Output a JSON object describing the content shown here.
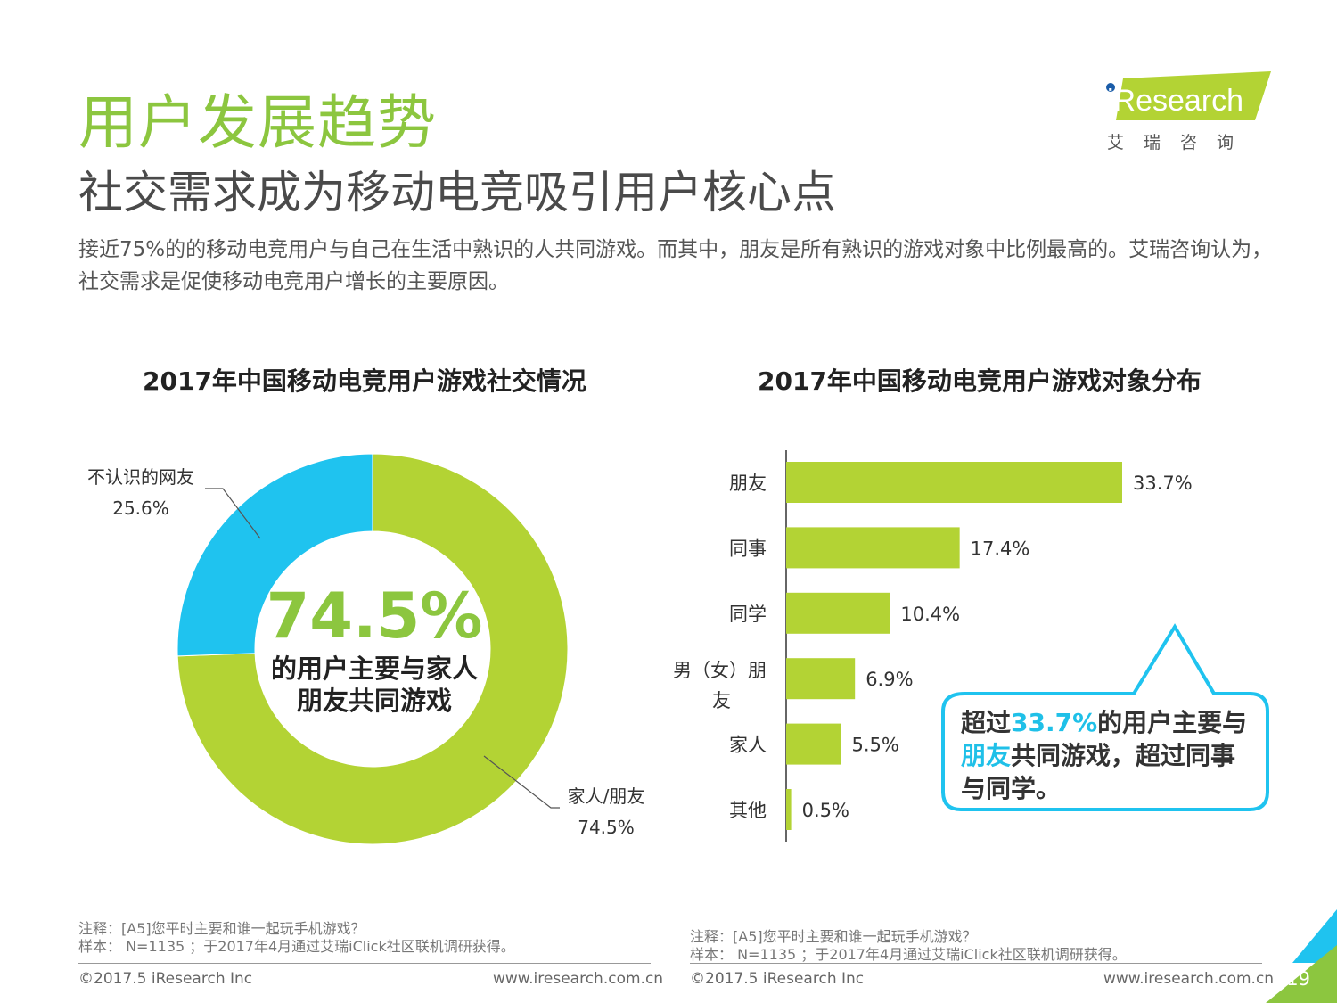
{
  "header": {
    "title": "用户发展趋势",
    "subtitle": "社交需求成为移动电竞吸引用户核心点",
    "intro": "接近75%的的移动电竞用户与自己在生活中熟识的人共同游戏。而其中，朋友是所有熟识的游戏对象中比例最高的。艾瑞咨询认为，社交需求是促使移动电竞用户增长的主要原因。"
  },
  "logo": {
    "brand": "iResearch",
    "cn": "艾 瑞 咨 询"
  },
  "chart_data": [
    {
      "type": "pie",
      "title": "2017年中国移动电竞用户游戏社交情况",
      "categories": [
        "家人/朋友",
        "不认识的网友"
      ],
      "values": [
        74.5,
        25.6
      ],
      "value_labels": [
        "74.5%",
        "25.6%"
      ],
      "colors": [
        "#b3d334",
        "#1fc3ef"
      ],
      "donut": true,
      "center_value": "74.5%",
      "center_text": "的用户主要与家人朋友共同游戏"
    },
    {
      "type": "bar",
      "orientation": "horizontal",
      "title": "2017年中国移动电竞用户游戏对象分布",
      "categories": [
        "朋友",
        "同事",
        "同学",
        "男（女）朋友",
        "家人",
        "其他"
      ],
      "values": [
        33.7,
        17.4,
        10.4,
        6.9,
        5.5,
        0.5
      ],
      "value_labels": [
        "33.7%",
        "17.4%",
        "10.4%",
        "6.9%",
        "5.5%",
        "0.5%"
      ],
      "color": "#b3d334",
      "xlim": [
        0,
        33.7
      ],
      "grid": false
    }
  ],
  "callout": {
    "prefix": "超过",
    "highlight1": "33.7%",
    "mid1": "的用户主要与",
    "highlight2": "朋友",
    "rest": "共同游戏，超过同事与同学。"
  },
  "notes": {
    "left": {
      "note": "注释：[A5]您平时主要和谁一起玩手机游戏？",
      "sample": "样本： N=1135 ；于2017年4月通过艾瑞iClick社区联机调研获得。"
    },
    "right": {
      "note": "注释：[A5]您平时主要和谁一起玩手机游戏？",
      "sample": "样本： N=1135 ；于2017年4月通过艾瑞iClick社区联机调研获得。"
    }
  },
  "footer": {
    "copyright": "©2017.5 iResearch Inc",
    "url": "www.iresearch.com.cn",
    "page": "19"
  },
  "colors": {
    "accent": "#8cc63f",
    "blue": "#1fc3ef",
    "bar": "#b3d334"
  }
}
